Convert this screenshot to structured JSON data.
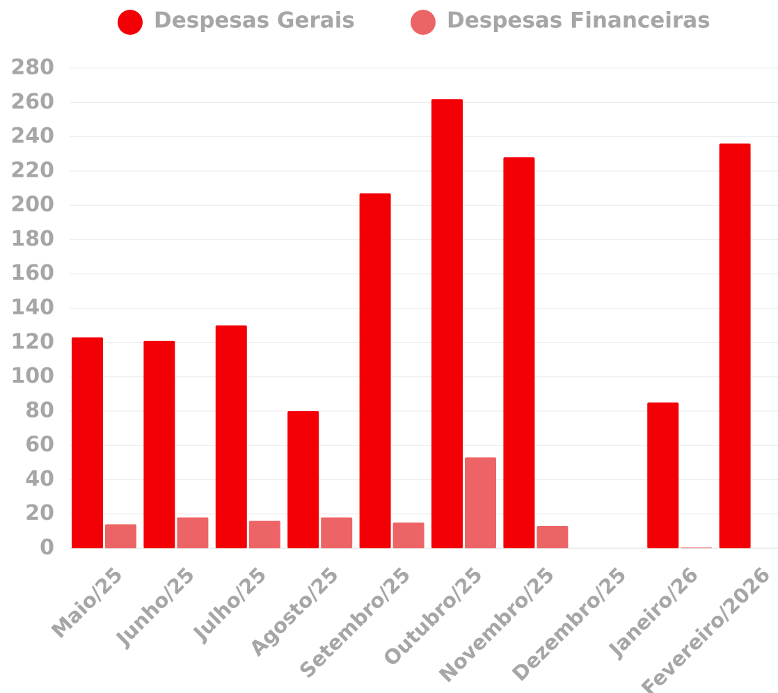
{
  "chart_data": {
    "type": "bar",
    "categories": [
      "Maio/25",
      "Junho/25",
      "Julho/25",
      "Agosto/25",
      "Setembro/25",
      "Outubro/25",
      "Novembro/25",
      "Dezembro/25",
      "Janeiro/26",
      "Fevereiro/2026"
    ],
    "series": [
      {
        "name": "Despesas Gerais",
        "color": "#f20006",
        "values": [
          123,
          121,
          130,
          80,
          207,
          262,
          228,
          0,
          85,
          236
        ]
      },
      {
        "name": "Despesas Financeiras",
        "color": "#ec6465",
        "values": [
          14,
          18,
          16,
          18,
          15,
          53,
          13,
          0,
          0.5,
          0
        ]
      }
    ],
    "ylim": [
      0,
      280
    ],
    "yticks": [
      0,
      20,
      40,
      60,
      80,
      100,
      120,
      140,
      160,
      180,
      200,
      220,
      240,
      260,
      280
    ],
    "grid": true,
    "legend": "top"
  }
}
